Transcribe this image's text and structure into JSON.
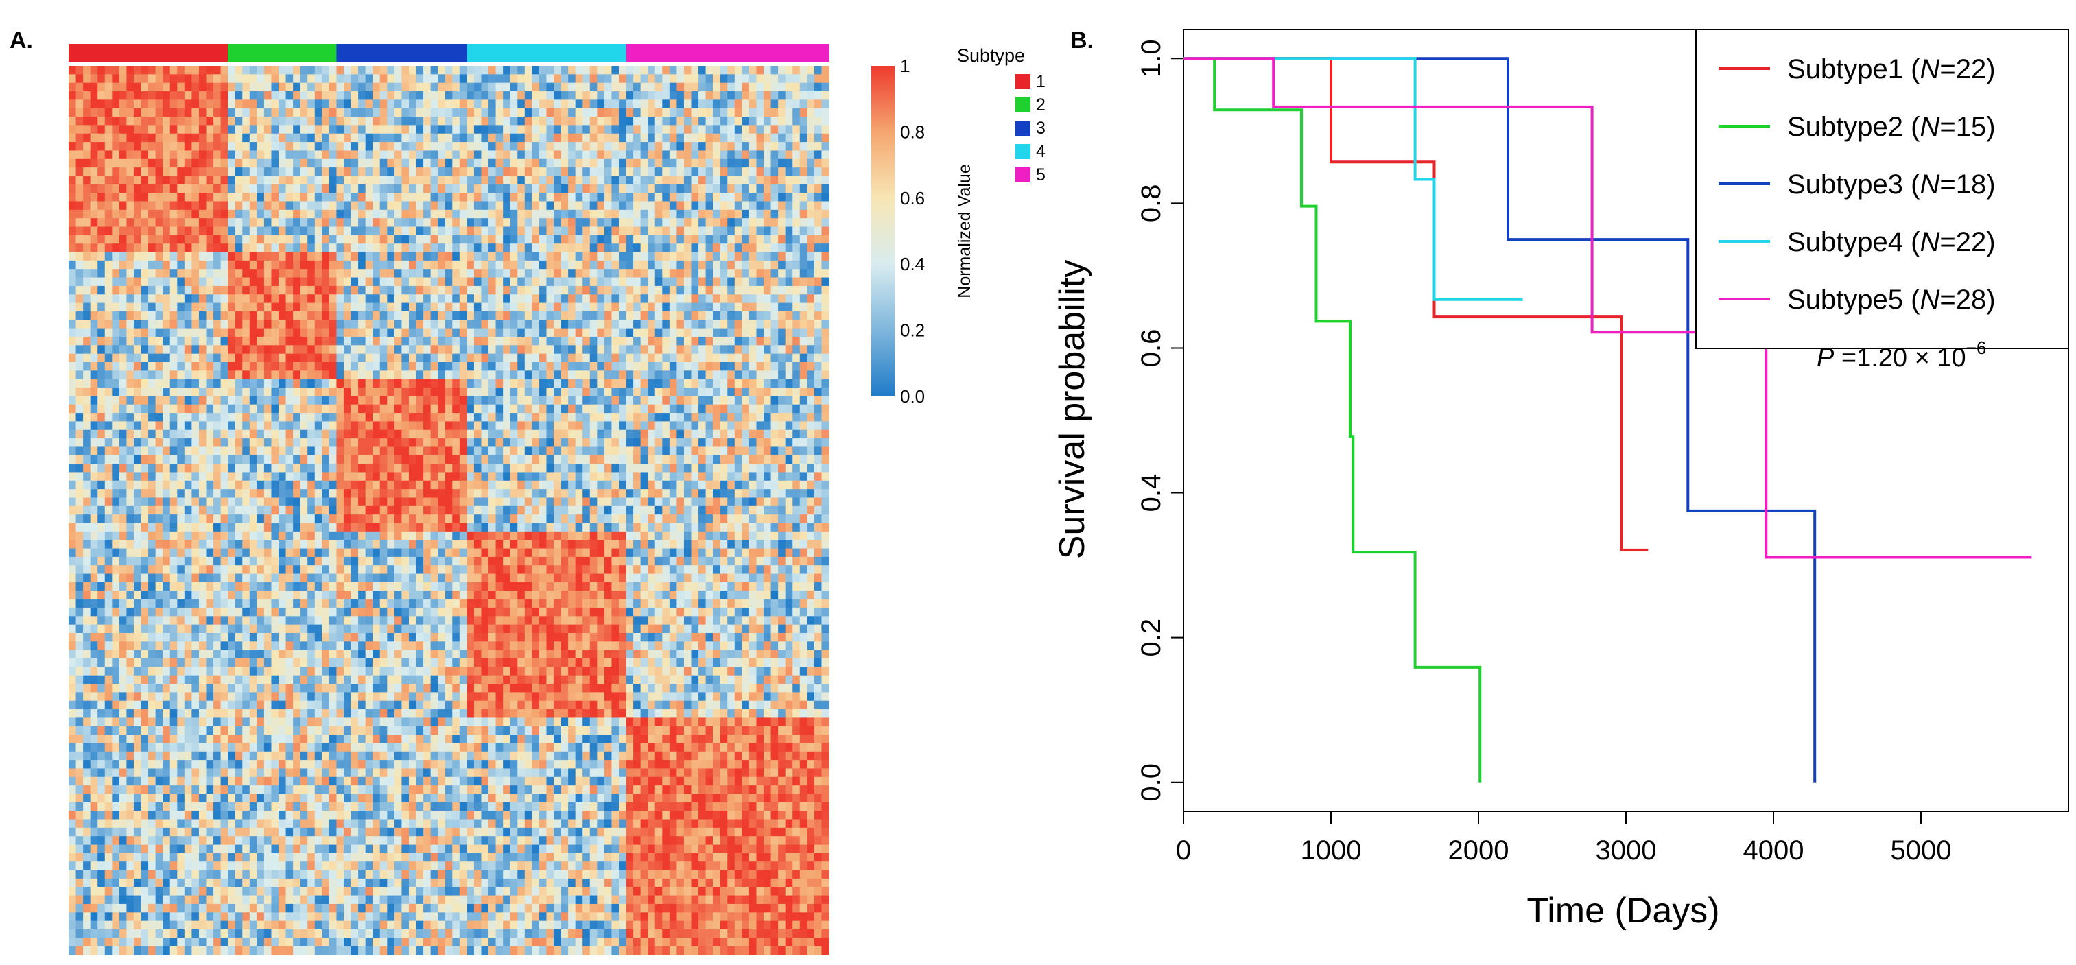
{
  "chart_data": [
    {
      "type": "heatmap",
      "panel_label": "A.",
      "legend_title": "Subtype",
      "colorbar_label": "Normalized Value",
      "colorbar_ticks": [
        "1",
        "0.8",
        "0.6",
        "0.4",
        "0.2",
        "0.0"
      ],
      "colorbar_range": [
        0,
        1
      ],
      "colorscale": [
        "#1f7bc8",
        "#7fb6dc",
        "#d8ecef",
        "#f7e6b4",
        "#f5a66f",
        "#ee3b2e"
      ],
      "subtypes": [
        {
          "label": "1",
          "color": "#e8232a",
          "size": 22
        },
        {
          "label": "2",
          "color": "#1fd12f",
          "size": 15
        },
        {
          "label": "3",
          "color": "#1440c4",
          "size": 18
        },
        {
          "label": "4",
          "color": "#21d6ea",
          "size": 22
        },
        {
          "label": "5",
          "color": "#f01fc3",
          "size": 28
        }
      ]
    },
    {
      "type": "line",
      "subtype": "step",
      "panel_label": "B.",
      "xlabel": "Time (Days)",
      "ylabel": "Survival probability",
      "xlim": [
        0,
        6000
      ],
      "ylim": [
        -0.04,
        1.04
      ],
      "xticks": [
        0,
        1000,
        2000,
        3000,
        4000,
        5000
      ],
      "yticks": [
        0.0,
        0.2,
        0.4,
        0.6,
        0.8,
        1.0
      ],
      "xtick_labels": [
        "0",
        "1000",
        "2000",
        "3000",
        "4000",
        "5000"
      ],
      "ytick_labels": [
        "0.0",
        "0.2",
        "0.4",
        "0.6",
        "0.8",
        "1.0"
      ],
      "pvalue": {
        "prefix": "P",
        "text": " =1.20 × 10",
        "exponent": "−6"
      },
      "series": [
        {
          "name": "Subtype1",
          "n": "22",
          "n_label": "N",
          "n_value": "=22",
          "color": "#e8232a",
          "points": [
            [
              0,
              1.0
            ],
            [
              1000,
              1.0
            ],
            [
              1000,
              0.857
            ],
            [
              1700,
              0.857
            ],
            [
              1700,
              0.643
            ],
            [
              2970,
              0.643
            ],
            [
              2970,
              0.321
            ],
            [
              3150,
              0.321
            ]
          ]
        },
        {
          "name": "Subtype2",
          "n": "15",
          "n_label": "N",
          "n_value": "=15",
          "color": "#1fd12f",
          "points": [
            [
              0,
              1.0
            ],
            [
              210,
              1.0
            ],
            [
              210,
              0.929
            ],
            [
              800,
              0.929
            ],
            [
              800,
              0.796
            ],
            [
              900,
              0.796
            ],
            [
              900,
              0.637
            ],
            [
              1130,
              0.637
            ],
            [
              1130,
              0.478
            ],
            [
              1150,
              0.478
            ],
            [
              1150,
              0.318
            ],
            [
              1570,
              0.318
            ],
            [
              1570,
              0.159
            ],
            [
              2010,
              0.159
            ],
            [
              2010,
              0.0
            ]
          ]
        },
        {
          "name": "Subtype3",
          "n": "18",
          "n_label": "N",
          "n_value": "=18",
          "color": "#1440c4",
          "points": [
            [
              0,
              1.0
            ],
            [
              2200,
              1.0
            ],
            [
              2200,
              0.75
            ],
            [
              3420,
              0.75
            ],
            [
              3420,
              0.375
            ],
            [
              4280,
              0.375
            ],
            [
              4280,
              0.0
            ]
          ]
        },
        {
          "name": "Subtype4",
          "n": "22",
          "n_label": "N",
          "n_value": "=22",
          "color": "#21d6ea",
          "points": [
            [
              0,
              1.0
            ],
            [
              1570,
              1.0
            ],
            [
              1570,
              0.833
            ],
            [
              1700,
              0.833
            ],
            [
              1700,
              0.667
            ],
            [
              2300,
              0.667
            ]
          ]
        },
        {
          "name": "Subtype5",
          "n": "28",
          "n_label": "N",
          "n_value": "=28",
          "color": "#f01fc3",
          "points": [
            [
              0,
              1.0
            ],
            [
              610,
              1.0
            ],
            [
              610,
              0.933
            ],
            [
              2770,
              0.933
            ],
            [
              2770,
              0.622
            ],
            [
              3950,
              0.622
            ],
            [
              3950,
              0.311
            ],
            [
              5750,
              0.311
            ]
          ]
        }
      ]
    }
  ]
}
